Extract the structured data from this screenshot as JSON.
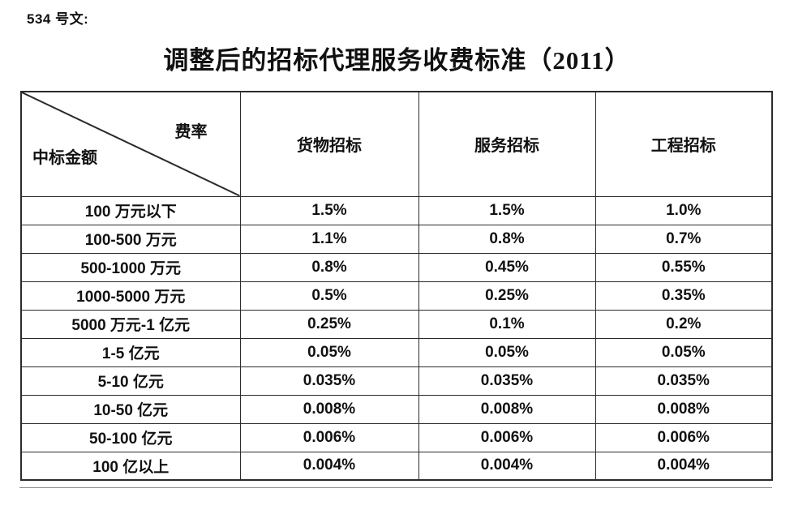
{
  "page": {
    "doc_label": "534 号文:",
    "title": "调整后的招标代理服务收费标准（2011）"
  },
  "table": {
    "corner": {
      "top_right": "费率",
      "bottom_left": "中标金额"
    },
    "columns": [
      "货物招标",
      "服务招标",
      "工程招标"
    ],
    "rows": [
      {
        "label": "100 万元以下",
        "values": [
          "1.5%",
          "1.5%",
          "1.0%"
        ]
      },
      {
        "label": "100-500 万元",
        "values": [
          "1.1%",
          "0.8%",
          "0.7%"
        ]
      },
      {
        "label": "500-1000 万元",
        "values": [
          "0.8%",
          "0.45%",
          "0.55%"
        ]
      },
      {
        "label": "1000-5000 万元",
        "values": [
          "0.5%",
          "0.25%",
          "0.35%"
        ]
      },
      {
        "label": "5000 万元-1 亿元",
        "values": [
          "0.25%",
          "0.1%",
          "0.2%"
        ]
      },
      {
        "label": "1-5 亿元",
        "values": [
          "0.05%",
          "0.05%",
          "0.05%"
        ]
      },
      {
        "label": "5-10 亿元",
        "values": [
          "0.035%",
          "0.035%",
          "0.035%"
        ]
      },
      {
        "label": "10-50 亿元",
        "values": [
          "0.008%",
          "0.008%",
          "0.008%"
        ]
      },
      {
        "label": "50-100 亿元",
        "values": [
          "0.006%",
          "0.006%",
          "0.006%"
        ]
      },
      {
        "label": "100 亿以上",
        "values": [
          "0.004%",
          "0.004%",
          "0.004%"
        ]
      }
    ]
  },
  "colors": {
    "text": "#111111",
    "border": "#2b2b2b",
    "background": "#ffffff"
  }
}
